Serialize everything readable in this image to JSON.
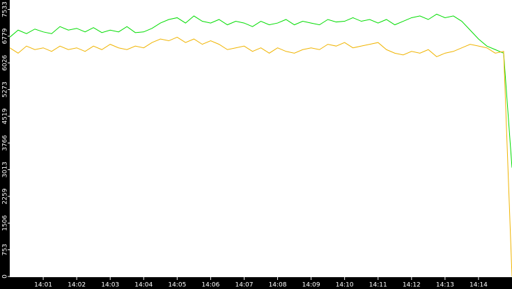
{
  "chart_data": {
    "type": "line",
    "x": [
      840,
      840.25,
      840.5,
      840.75,
      841,
      841.25,
      841.5,
      841.75,
      842,
      842.25,
      842.5,
      842.75,
      843,
      843.25,
      843.5,
      843.75,
      844,
      844.25,
      844.5,
      844.75,
      845,
      845.25,
      845.5,
      845.75,
      846,
      846.25,
      846.5,
      846.75,
      847,
      847.25,
      847.5,
      847.75,
      848,
      848.25,
      848.5,
      848.75,
      849,
      849.25,
      849.5,
      849.75,
      850,
      850.25,
      850.5,
      850.75,
      851,
      851.25,
      851.5,
      851.75,
      852,
      852.25,
      852.5,
      852.75,
      853,
      853.25,
      853.5,
      853.75,
      854,
      854.25,
      854.5,
      854.75,
      855
    ],
    "series": [
      {
        "color": "#00dd00",
        "values": [
          6750,
          6950,
          6850,
          6980,
          6900,
          6850,
          7050,
          6950,
          7000,
          6900,
          7020,
          6880,
          6950,
          6900,
          7050,
          6880,
          6900,
          7000,
          7150,
          7250,
          7300,
          7150,
          7350,
          7200,
          7150,
          7250,
          7100,
          7200,
          7150,
          7050,
          7200,
          7100,
          7150,
          7250,
          7100,
          7200,
          7150,
          7100,
          7250,
          7180,
          7200,
          7300,
          7200,
          7250,
          7150,
          7250,
          7100,
          7200,
          7300,
          7350,
          7250,
          7400,
          7300,
          7350,
          7200,
          6950,
          6700,
          6500,
          6400,
          6300,
          3070
        ]
      },
      {
        "color": "#f0b400",
        "values": [
          6450,
          6300,
          6500,
          6400,
          6450,
          6350,
          6500,
          6400,
          6450,
          6350,
          6500,
          6400,
          6550,
          6450,
          6400,
          6500,
          6450,
          6600,
          6700,
          6650,
          6750,
          6600,
          6700,
          6550,
          6650,
          6550,
          6400,
          6450,
          6500,
          6350,
          6450,
          6300,
          6450,
          6350,
          6300,
          6400,
          6450,
          6400,
          6550,
          6500,
          6600,
          6450,
          6500,
          6550,
          6600,
          6400,
          6300,
          6250,
          6350,
          6300,
          6400,
          6200,
          6300,
          6350,
          6450,
          6550,
          6500,
          6450,
          6300,
          6350,
          0
        ]
      }
    ],
    "xlim": [
      840,
      855
    ],
    "xticks": [
      {
        "value": 841,
        "label": "14:01"
      },
      {
        "value": 842,
        "label": "14:02"
      },
      {
        "value": 843,
        "label": "14:03"
      },
      {
        "value": 844,
        "label": "14:04"
      },
      {
        "value": 845,
        "label": "14:05"
      },
      {
        "value": 846,
        "label": "14:06"
      },
      {
        "value": 847,
        "label": "14:07"
      },
      {
        "value": 848,
        "label": "14:08"
      },
      {
        "value": 849,
        "label": "14:09"
      },
      {
        "value": 850,
        "label": "14:10"
      },
      {
        "value": 851,
        "label": "14:11"
      },
      {
        "value": 852,
        "label": "14:12"
      },
      {
        "value": 853,
        "label": "14:13"
      },
      {
        "value": 854,
        "label": "14:14"
      }
    ],
    "ylim": [
      0,
      7800
    ],
    "yticks": [
      0,
      753,
      1506,
      2259,
      3013,
      3766,
      4519,
      5273,
      6026,
      6779,
      7533
    ]
  }
}
